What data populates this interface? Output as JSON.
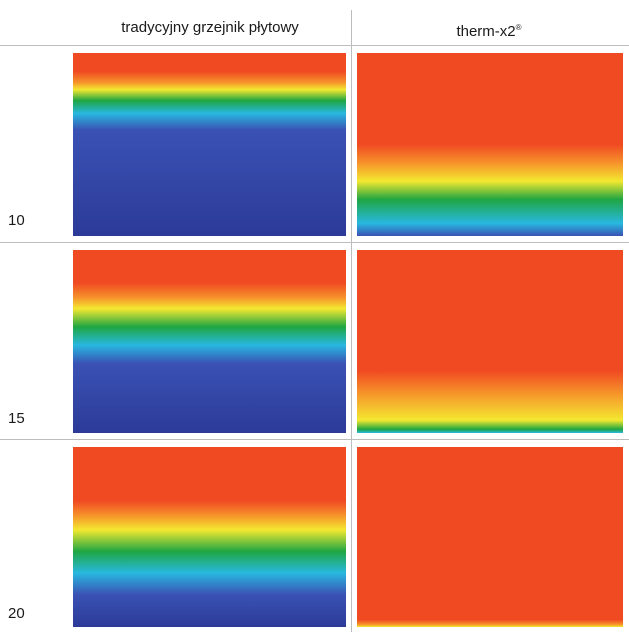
{
  "header": {
    "left_label": "tradycyjny grzejnik płytowy",
    "right_label": "therm-x2",
    "right_mark": "®"
  },
  "rows": [
    {
      "label": "10"
    },
    {
      "label": "15"
    },
    {
      "label": "20"
    }
  ],
  "colors": {
    "hot": "#f04a22",
    "orange": "#f6922a",
    "yellow": "#f4e830",
    "green": "#1fa642",
    "cyan": "#28b8e0",
    "blue": "#3a52b4",
    "deep_blue": "#2c3a98",
    "grid_line": "#bdbdbd"
  }
}
